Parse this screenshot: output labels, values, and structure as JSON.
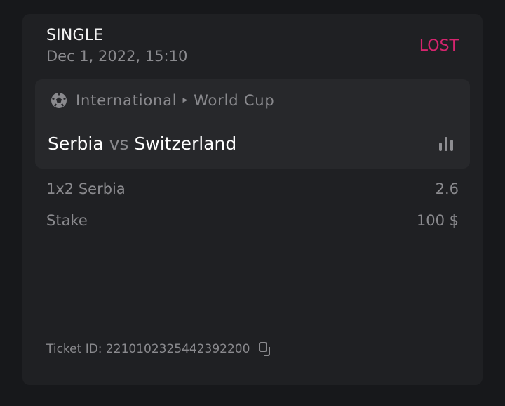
{
  "bet": {
    "type": "SINGLE",
    "date": "Dec 1, 2022, 15:10",
    "status": "LOST",
    "status_color": "#d6246e"
  },
  "event": {
    "sport_icon": "soccer-ball-icon",
    "category": "International",
    "tournament": "World Cup",
    "home": "Serbia",
    "vs": "vs",
    "away": "Switzerland",
    "stats_icon": "bar-chart-icon"
  },
  "selection": {
    "label": "1x2 Serbia",
    "odds": "2.6"
  },
  "stake": {
    "label": "Stake",
    "value": "100 $"
  },
  "ticket": {
    "label": "Ticket ID: 22101023254423922​00",
    "copy_icon": "copy-icon"
  }
}
